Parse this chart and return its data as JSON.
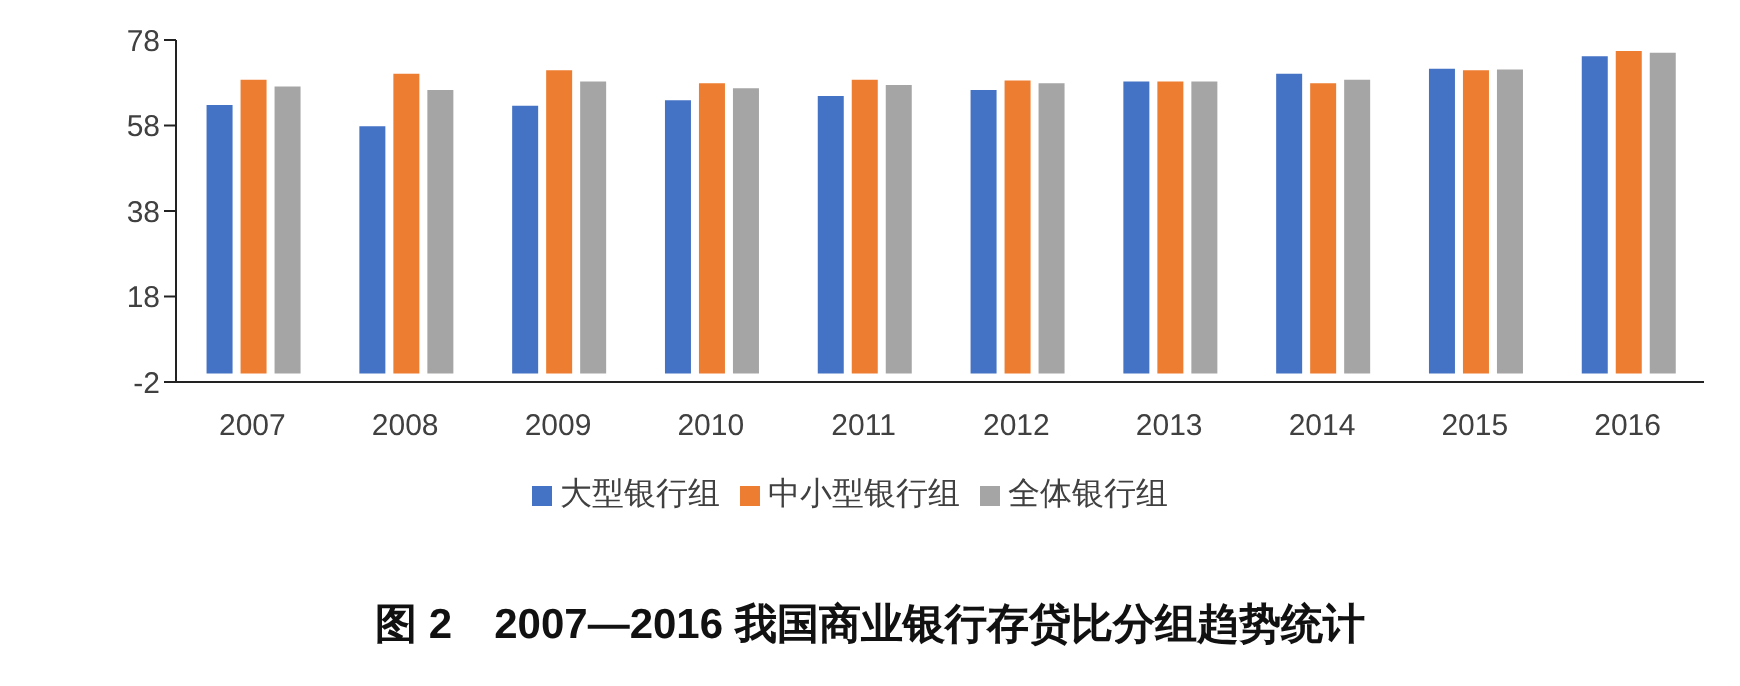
{
  "chart_data": {
    "type": "bar",
    "title": "图 2　2007—2016 我国商业银行存贷比分组趋势统计",
    "categories": [
      "2007",
      "2008",
      "2009",
      "2010",
      "2011",
      "2012",
      "2013",
      "2014",
      "2015",
      "2016"
    ],
    "series": [
      {
        "name": "大型银行组",
        "color": "#4472c4",
        "values": [
          62.8,
          57.8,
          62.6,
          63.9,
          64.9,
          66.3,
          68.3,
          70.1,
          71.3,
          74.2
        ]
      },
      {
        "name": "中小型银行组",
        "color": "#ed7d31",
        "values": [
          68.7,
          70.1,
          70.9,
          67.9,
          68.7,
          68.5,
          68.3,
          67.9,
          70.9,
          75.4
        ]
      },
      {
        "name": "全体银行组",
        "color": "#a5a5a5",
        "values": [
          67.1,
          66.3,
          68.3,
          66.7,
          67.5,
          67.9,
          68.3,
          68.7,
          71.1,
          75.0
        ]
      }
    ],
    "ylim": [
      -2,
      78
    ],
    "yticks": [
      -2,
      18,
      38,
      58,
      78
    ],
    "grid": false,
    "legend": "bottom"
  }
}
